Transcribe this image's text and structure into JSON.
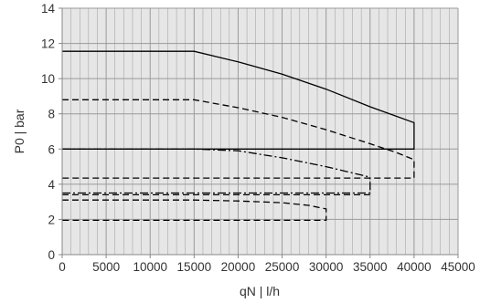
{
  "chart_data": {
    "type": "line",
    "xlabel": "qN | l/h",
    "ylabel": "P0 | bar",
    "xlim": [
      0,
      45000
    ],
    "ylim": [
      0,
      14
    ],
    "xticks": [
      0,
      5000,
      10000,
      15000,
      20000,
      25000,
      30000,
      35000,
      40000,
      45000
    ],
    "yticks": [
      0,
      2,
      4,
      6,
      8,
      10,
      12,
      14
    ],
    "xtick_labels": [
      "0",
      "5000",
      "10000",
      "15000",
      "20000",
      "25000",
      "30000",
      "35000",
      "40000",
      "45000"
    ],
    "ytick_labels": [
      "0",
      "2",
      "4",
      "6",
      "8",
      "10",
      "12",
      "14"
    ],
    "grid": true,
    "minor_x_step": 1000,
    "background_color": "#e6e6e6",
    "grid_color": "#ffffff",
    "line_color": "#000000",
    "series": [
      {
        "style": "solid",
        "points": [
          [
            0,
            11.55
          ],
          [
            15000,
            11.55
          ],
          [
            20000,
            10.95
          ],
          [
            25000,
            10.25
          ],
          [
            30000,
            9.4
          ],
          [
            35000,
            8.4
          ],
          [
            40000,
            7.5
          ],
          [
            40000,
            6.0
          ],
          [
            0,
            6.0
          ]
        ]
      },
      {
        "style": "dashed",
        "points": [
          [
            0,
            8.8
          ],
          [
            15000,
            8.8
          ],
          [
            20000,
            8.35
          ],
          [
            25000,
            7.8
          ],
          [
            30000,
            7.1
          ],
          [
            35000,
            6.3
          ],
          [
            38000,
            5.8
          ],
          [
            40000,
            5.4
          ],
          [
            40000,
            4.35
          ],
          [
            0,
            4.35
          ]
        ]
      },
      {
        "style": "dashdot",
        "points": [
          [
            0,
            6.0
          ],
          [
            15000,
            6.0
          ],
          [
            20000,
            5.9
          ],
          [
            25000,
            5.5
          ],
          [
            30000,
            5.0
          ],
          [
            35000,
            4.4
          ]
        ]
      },
      {
        "style": "dashdot",
        "points": [
          [
            0,
            3.5
          ],
          [
            15000,
            3.5
          ],
          [
            35000,
            3.5
          ],
          [
            35000,
            4.4
          ]
        ]
      },
      {
        "style": "dashed",
        "points": [
          [
            0,
            3.4
          ],
          [
            35000,
            3.4
          ]
        ]
      },
      {
        "style": "dashed",
        "points": [
          [
            0,
            3.1
          ],
          [
            15000,
            3.1
          ],
          [
            20000,
            3.05
          ],
          [
            25000,
            2.95
          ],
          [
            28000,
            2.8
          ],
          [
            30000,
            2.6
          ],
          [
            30000,
            1.95
          ],
          [
            0,
            1.95
          ]
        ]
      }
    ]
  }
}
